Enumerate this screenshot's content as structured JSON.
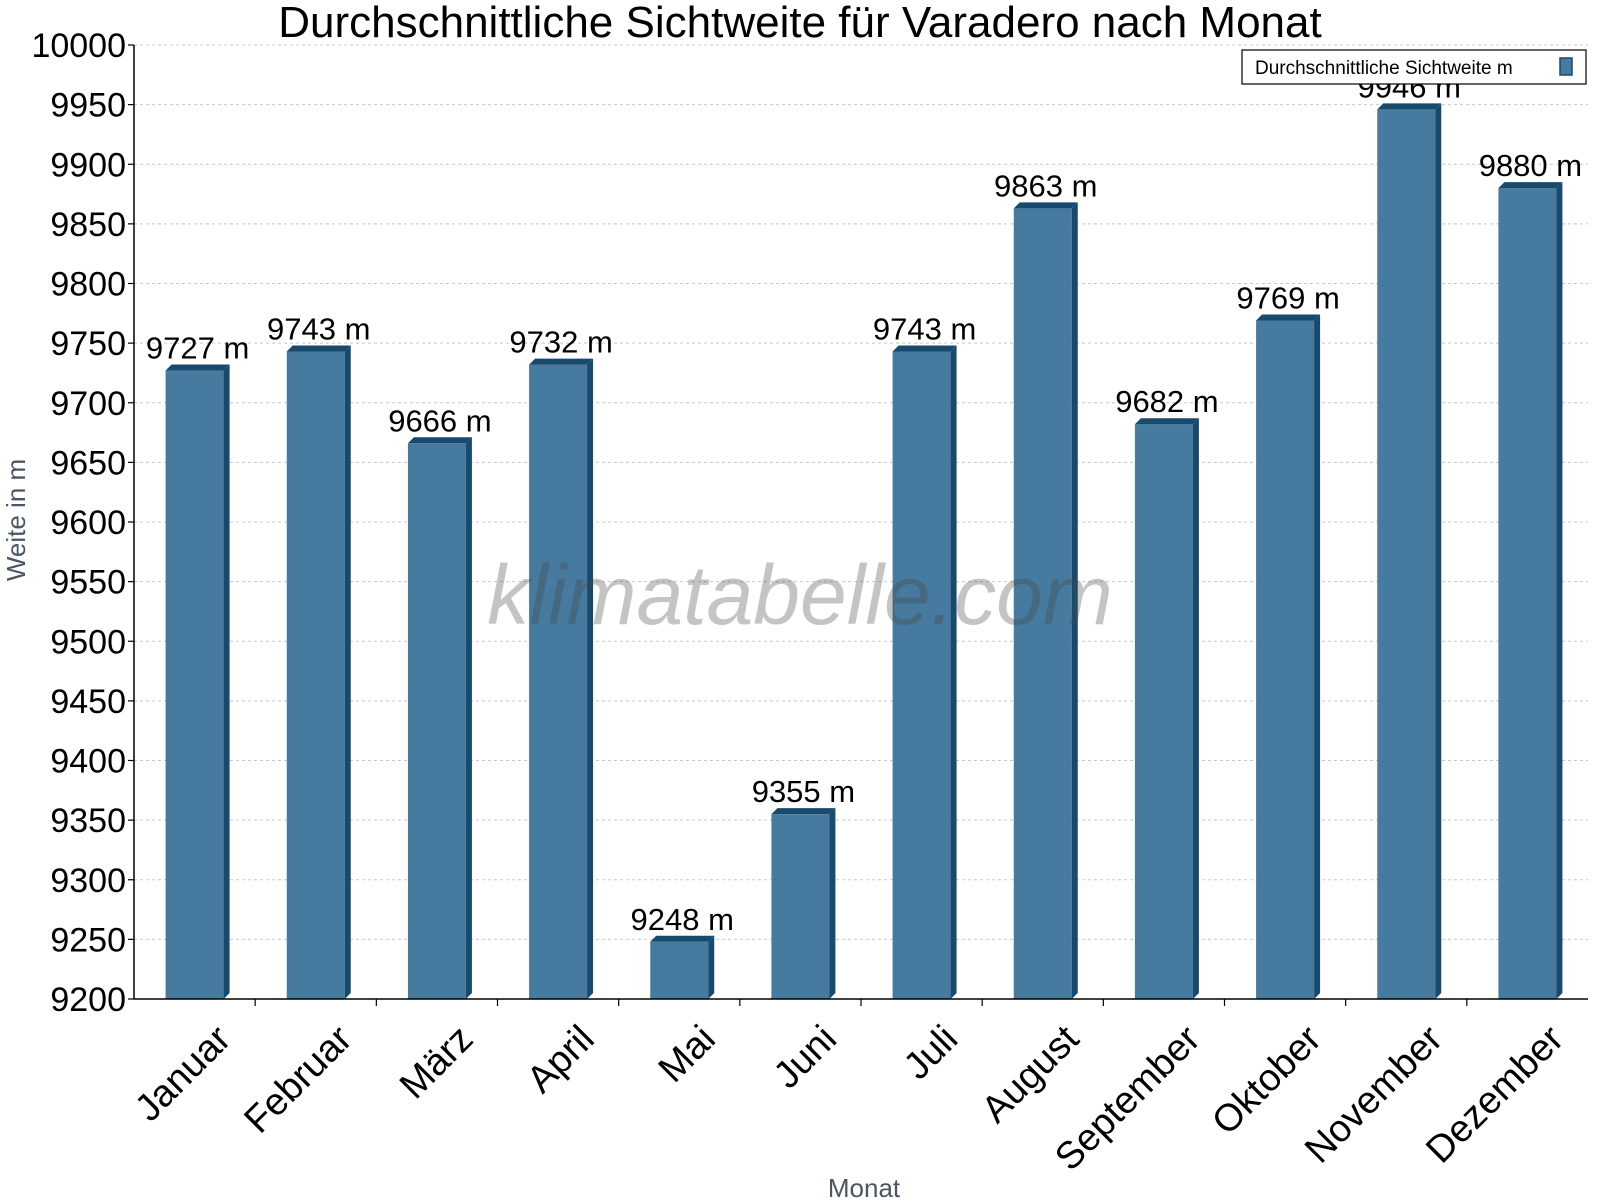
{
  "chart_data": {
    "type": "bar",
    "title": "Durchschnittliche Sichtweite für Varadero nach Monat",
    "xlabel": "Monat",
    "ylabel": "Weite in m",
    "ylim": [
      9200,
      10000
    ],
    "ytick_step": 50,
    "unit_suffix": " m",
    "grid": true,
    "legend_position": "top-right",
    "categories": [
      "Januar",
      "Februar",
      "März",
      "April",
      "Mai",
      "Juni",
      "Juli",
      "August",
      "September",
      "Oktober",
      "November",
      "Dezember"
    ],
    "series": [
      {
        "name": "Durchschnittliche Sichtweite m",
        "values": [
          9727,
          9743,
          9666,
          9732,
          9248,
          9355,
          9743,
          9863,
          9682,
          9769,
          9946,
          9880
        ],
        "labels": [
          "9727 m",
          "9743 m",
          "9666 m",
          "9732 m",
          "9248 m",
          "9355 m",
          "9743 m",
          "9863 m",
          "9682 m",
          "9769 m",
          "9946 m",
          "9880 m"
        ],
        "color": "#467a9e",
        "side_color": "#184a6e"
      }
    ],
    "watermark": "klimatabelle.com"
  }
}
